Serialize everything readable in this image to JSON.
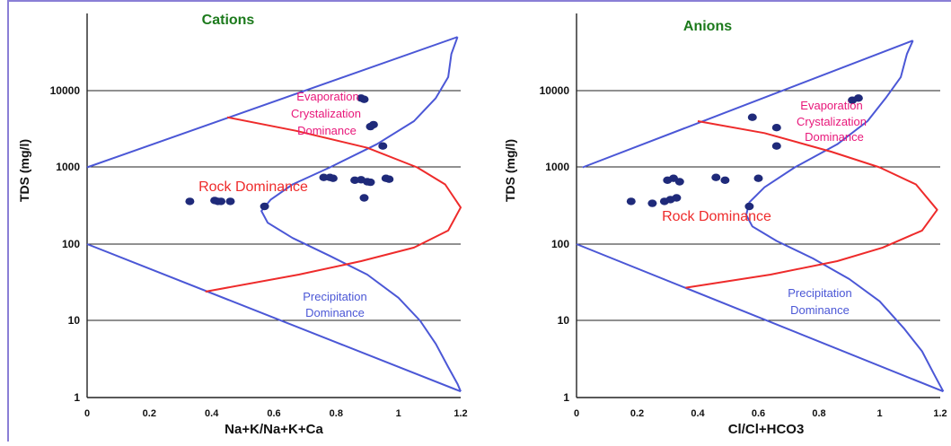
{
  "colors": {
    "boundary": "#4b57d6",
    "rock_curve": "#ee2b2b",
    "points": "#1f2a7a",
    "region_label_pink": "#e8177a",
    "region_label_red": "#ee2b2b",
    "region_label_blue": "#4b57d6",
    "title_green": "#1c7a1c",
    "grid": "#222222",
    "frame": "#8a7fd6"
  },
  "chart_data": [
    {
      "type": "scatter",
      "title": "Cations",
      "xlabel": "Na+K/Na+K+Ca",
      "ylabel": "TDS (mg/l)",
      "xlim": [
        0,
        1.2
      ],
      "ylim": [
        1,
        100000
      ],
      "yscale": "log",
      "x_ticks": [
        "0",
        "0.2",
        "0.4",
        "0.6",
        "0.8",
        "1",
        "1.2"
      ],
      "y_ticks": [
        "1",
        "10",
        "100",
        "1000",
        "10000"
      ],
      "grid": "horizontal",
      "region_labels": {
        "evaporation": [
          "Evaporation",
          "Crystalization",
          "Dominance"
        ],
        "rock": "Rock Dominance",
        "precipitation": [
          "Precipitation",
          "Dominance"
        ]
      },
      "points": [
        {
          "x": 0.33,
          "y": 360
        },
        {
          "x": 0.41,
          "y": 370
        },
        {
          "x": 0.42,
          "y": 360
        },
        {
          "x": 0.43,
          "y": 360
        },
        {
          "x": 0.46,
          "y": 360
        },
        {
          "x": 0.57,
          "y": 310
        },
        {
          "x": 0.76,
          "y": 740
        },
        {
          "x": 0.78,
          "y": 740
        },
        {
          "x": 0.79,
          "y": 720
        },
        {
          "x": 0.86,
          "y": 680
        },
        {
          "x": 0.88,
          "y": 690
        },
        {
          "x": 0.9,
          "y": 650
        },
        {
          "x": 0.91,
          "y": 640
        },
        {
          "x": 0.89,
          "y": 400
        },
        {
          "x": 0.96,
          "y": 720
        },
        {
          "x": 0.97,
          "y": 700
        },
        {
          "x": 0.95,
          "y": 1900
        },
        {
          "x": 0.91,
          "y": 3400
        },
        {
          "x": 0.92,
          "y": 3600
        },
        {
          "x": 0.88,
          "y": 8000
        },
        {
          "x": 0.89,
          "y": 7700
        }
      ],
      "boundary_upper": [
        [
          0,
          1000
        ],
        [
          1.19,
          50000
        ]
      ],
      "boundary_lower": [
        [
          0,
          100
        ],
        [
          1.2,
          1.2
        ]
      ],
      "boundary_right": [
        [
          1.19,
          50000
        ],
        [
          1.17,
          30000
        ],
        [
          1.16,
          15000
        ],
        [
          1.12,
          8000
        ],
        [
          1.05,
          4000
        ],
        [
          0.93,
          2000
        ],
        [
          0.78,
          1000
        ],
        [
          0.66,
          600
        ],
        [
          0.59,
          380
        ],
        [
          0.56,
          270
        ],
        [
          0.58,
          190
        ],
        [
          0.66,
          120
        ],
        [
          0.78,
          70
        ],
        [
          0.9,
          40
        ],
        [
          1.0,
          20
        ],
        [
          1.07,
          10
        ],
        [
          1.12,
          5
        ],
        [
          1.16,
          2.5
        ],
        [
          1.19,
          1.5
        ],
        [
          1.2,
          1.2
        ]
      ],
      "rock_curve": [
        [
          0.45,
          4500
        ],
        [
          0.67,
          3000
        ],
        [
          0.9,
          1800
        ],
        [
          1.06,
          1000
        ],
        [
          1.15,
          600
        ],
        [
          1.2,
          300
        ],
        [
          1.16,
          150
        ],
        [
          1.05,
          90
        ],
        [
          0.88,
          60
        ],
        [
          0.68,
          40
        ],
        [
          0.38,
          24
        ]
      ]
    },
    {
      "type": "scatter",
      "title": "Anions",
      "xlabel": "Cl/Cl+HCO3",
      "ylabel": "TDS (mg/l)",
      "xlim": [
        0,
        1.2
      ],
      "ylim": [
        1,
        100000
      ],
      "yscale": "log",
      "x_ticks": [
        "0",
        "0.2",
        "0.4",
        "0.6",
        "0.8",
        "1",
        "1.2"
      ],
      "y_ticks": [
        "1",
        "10",
        "100",
        "1000",
        "10000"
      ],
      "grid": "horizontal",
      "region_labels": {
        "evaporation": [
          "Evaporation",
          "Crystalization",
          "Dominance"
        ],
        "rock": "Rock Dominance",
        "precipitation": [
          "Precipitation",
          "Dominance"
        ]
      },
      "points": [
        {
          "x": 0.18,
          "y": 360
        },
        {
          "x": 0.25,
          "y": 340
        },
        {
          "x": 0.29,
          "y": 360
        },
        {
          "x": 0.31,
          "y": 380
        },
        {
          "x": 0.33,
          "y": 400
        },
        {
          "x": 0.3,
          "y": 680
        },
        {
          "x": 0.32,
          "y": 720
        },
        {
          "x": 0.34,
          "y": 650
        },
        {
          "x": 0.46,
          "y": 740
        },
        {
          "x": 0.49,
          "y": 680
        },
        {
          "x": 0.6,
          "y": 720
        },
        {
          "x": 0.57,
          "y": 310
        },
        {
          "x": 0.58,
          "y": 4500
        },
        {
          "x": 0.66,
          "y": 3300
        },
        {
          "x": 0.66,
          "y": 1900
        },
        {
          "x": 0.91,
          "y": 7500
        },
        {
          "x": 0.93,
          "y": 8000
        }
      ],
      "boundary_upper": [
        [
          0.02,
          1000
        ],
        [
          1.11,
          45000
        ]
      ],
      "boundary_lower": [
        [
          0,
          100
        ],
        [
          1.21,
          1.2
        ]
      ],
      "boundary_right": [
        [
          1.11,
          45000
        ],
        [
          1.09,
          30000
        ],
        [
          1.07,
          15000
        ],
        [
          1.02,
          8000
        ],
        [
          0.96,
          4000
        ],
        [
          0.86,
          2000
        ],
        [
          0.72,
          1000
        ],
        [
          0.62,
          550
        ],
        [
          0.57,
          350
        ],
        [
          0.56,
          240
        ],
        [
          0.58,
          170
        ],
        [
          0.66,
          110
        ],
        [
          0.78,
          65
        ],
        [
          0.9,
          35
        ],
        [
          1.0,
          18
        ],
        [
          1.08,
          8
        ],
        [
          1.14,
          4
        ],
        [
          1.18,
          2
        ],
        [
          1.21,
          1.2
        ]
      ],
      "rock_curve": [
        [
          0.4,
          4000
        ],
        [
          0.62,
          2800
        ],
        [
          0.84,
          1600
        ],
        [
          1.0,
          1000
        ],
        [
          1.12,
          600
        ],
        [
          1.19,
          280
        ],
        [
          1.14,
          150
        ],
        [
          1.01,
          90
        ],
        [
          0.86,
          60
        ],
        [
          0.64,
          40
        ],
        [
          0.36,
          27
        ]
      ]
    }
  ]
}
